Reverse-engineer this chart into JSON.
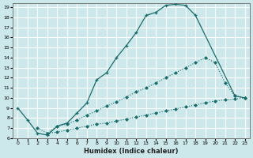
{
  "xlabel": "Humidex (Indice chaleur)",
  "bg_color": "#cce8ea",
  "grid_color": "#ffffff",
  "line_color": "#1a6b6b",
  "xlim": [
    -0.5,
    23.5
  ],
  "ylim": [
    6,
    19.4
  ],
  "xticks": [
    0,
    1,
    2,
    3,
    4,
    5,
    6,
    7,
    8,
    9,
    10,
    11,
    12,
    13,
    14,
    15,
    16,
    17,
    18,
    19,
    20,
    21,
    22,
    23
  ],
  "yticks": [
    6,
    7,
    8,
    9,
    10,
    11,
    12,
    13,
    14,
    15,
    16,
    17,
    18,
    19
  ],
  "line1_x": [
    0,
    1,
    2,
    3,
    4,
    5,
    6,
    7,
    8,
    9,
    10,
    11,
    12,
    13,
    14,
    15,
    16,
    17,
    18,
    22,
    23
  ],
  "line1_y": [
    9.0,
    7.8,
    6.5,
    6.3,
    7.2,
    7.5,
    8.5,
    9.5,
    11.8,
    12.5,
    14.0,
    15.2,
    16.5,
    18.2,
    18.5,
    19.2,
    19.3,
    19.2,
    18.2,
    10.2,
    10.0
  ],
  "line2_full_x": [
    2,
    3,
    4,
    5,
    6,
    7,
    8,
    9,
    10,
    11,
    12,
    13,
    14,
    15,
    16,
    17,
    18,
    19,
    20,
    21,
    22,
    23
  ],
  "line2_full_y": [
    7.0,
    6.5,
    7.2,
    7.4,
    7.8,
    8.3,
    8.7,
    9.2,
    9.6,
    10.1,
    10.6,
    11.0,
    11.5,
    12.0,
    12.5,
    13.0,
    13.5,
    14.0,
    13.5,
    11.5,
    10.2,
    10.0
  ],
  "line3_x": [
    3,
    4,
    5,
    6,
    7,
    8,
    9,
    10,
    11,
    12,
    13,
    14,
    15,
    16,
    17,
    18,
    19,
    20,
    21,
    22,
    23
  ],
  "line3_y": [
    6.5,
    6.6,
    6.8,
    7.0,
    7.2,
    7.4,
    7.5,
    7.7,
    7.9,
    8.1,
    8.3,
    8.5,
    8.7,
    8.9,
    9.1,
    9.3,
    9.5,
    9.7,
    9.8,
    9.9,
    10.0
  ]
}
